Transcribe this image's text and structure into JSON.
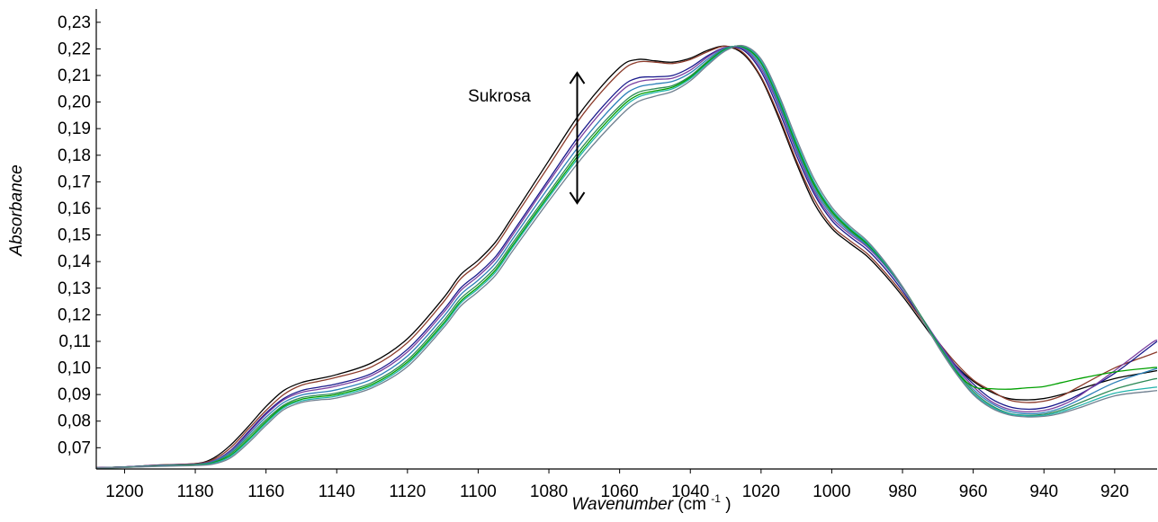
{
  "chart_data": {
    "type": "line",
    "xlabel_italic": "Wavenumber",
    "xlabel_unit_prefix": "(cm",
    "xlabel_unit_sup": "-1",
    "xlabel_unit_suffix": ")",
    "ylabel": "Absorbance",
    "xlim": [
      1208,
      908
    ],
    "ylim": [
      0.062,
      0.235
    ],
    "x_reversed": true,
    "grid": false,
    "x_ticks": [
      1200,
      1180,
      1160,
      1140,
      1120,
      1100,
      1080,
      1060,
      1040,
      1020,
      1000,
      980,
      960,
      940,
      920
    ],
    "x_tick_labels": [
      "1200",
      "1180",
      "1160",
      "1140",
      "1120",
      "1100",
      "1080",
      "1060",
      "1040",
      "1020",
      "1000",
      "980",
      "960",
      "940",
      "920"
    ],
    "y_ticks": [
      0.07,
      0.08,
      0.09,
      0.1,
      0.11,
      0.12,
      0.13,
      0.14,
      0.15,
      0.16,
      0.17,
      0.18,
      0.19,
      0.2,
      0.21,
      0.22,
      0.23
    ],
    "y_tick_labels": [
      "0,07",
      "0,08",
      "0,09",
      "0,10",
      "0,11",
      "0,12",
      "0,13",
      "0,14",
      "0,15",
      "0,16",
      "0,17",
      "0,18",
      "0,19",
      "0,20",
      "0,21",
      "0,22",
      "0,23"
    ],
    "annotation": {
      "text": "Sukrosa",
      "arrow_x": 1072,
      "arrow_y": [
        0.162,
        0.211
      ],
      "text_x": 1094,
      "text_y": 0.2025
    },
    "spectrum_x": [
      1208,
      1200,
      1190,
      1180,
      1175,
      1170,
      1165,
      1160,
      1155,
      1150,
      1145,
      1140,
      1130,
      1120,
      1110,
      1105,
      1100,
      1095,
      1090,
      1080,
      1070,
      1060,
      1055,
      1050,
      1045,
      1040,
      1035,
      1030,
      1025,
      1020,
      1015,
      1010,
      1005,
      1000,
      995,
      990,
      985,
      980,
      975,
      970,
      965,
      960,
      955,
      950,
      945,
      940,
      935,
      930,
      920,
      910,
      908
    ],
    "series": [
      {
        "color": "#000000",
        "values": [
          0.0625,
          0.0628,
          0.0635,
          0.064,
          0.066,
          0.071,
          0.078,
          0.0855,
          0.0915,
          0.0945,
          0.096,
          0.0975,
          0.102,
          0.111,
          0.126,
          0.135,
          0.1405,
          0.1475,
          0.1575,
          0.178,
          0.198,
          0.213,
          0.216,
          0.2155,
          0.215,
          0.2165,
          0.2195,
          0.221,
          0.218,
          0.209,
          0.194,
          0.177,
          0.162,
          0.1525,
          0.147,
          0.142,
          0.135,
          0.127,
          0.118,
          0.109,
          0.101,
          0.095,
          0.091,
          0.0885,
          0.088,
          0.0885,
          0.09,
          0.092,
          0.096,
          0.0985,
          0.099
        ]
      },
      {
        "color": "#8b3a2a",
        "values": [
          0.0625,
          0.0628,
          0.0635,
          0.064,
          0.0655,
          0.07,
          0.077,
          0.084,
          0.09,
          0.0935,
          0.095,
          0.0965,
          0.1005,
          0.1095,
          0.1245,
          0.1335,
          0.139,
          0.146,
          0.156,
          0.176,
          0.196,
          0.211,
          0.215,
          0.215,
          0.2145,
          0.216,
          0.219,
          0.221,
          0.2185,
          0.2095,
          0.195,
          0.178,
          0.1635,
          0.1535,
          0.148,
          0.143,
          0.136,
          0.128,
          0.119,
          0.11,
          0.102,
          0.0955,
          0.0915,
          0.088,
          0.087,
          0.0875,
          0.0895,
          0.093,
          0.1,
          0.105,
          0.106
        ]
      },
      {
        "color": "#1a1a8c",
        "values": [
          0.0625,
          0.0628,
          0.0634,
          0.0638,
          0.065,
          0.069,
          0.076,
          0.083,
          0.0885,
          0.0915,
          0.0928,
          0.094,
          0.098,
          0.107,
          0.1215,
          0.13,
          0.1355,
          0.142,
          0.1515,
          0.171,
          0.19,
          0.205,
          0.209,
          0.2095,
          0.21,
          0.213,
          0.2175,
          0.2205,
          0.2195,
          0.2115,
          0.197,
          0.18,
          0.1655,
          0.1555,
          0.1495,
          0.1445,
          0.1375,
          0.129,
          0.1195,
          0.11,
          0.101,
          0.094,
          0.0885,
          0.0855,
          0.0845,
          0.085,
          0.087,
          0.09,
          0.098,
          0.108,
          0.11
        ]
      },
      {
        "color": "#7a3fa0",
        "values": [
          0.0625,
          0.0628,
          0.0634,
          0.0638,
          0.065,
          0.0688,
          0.0755,
          0.0825,
          0.088,
          0.0908,
          0.092,
          0.0932,
          0.0972,
          0.106,
          0.1205,
          0.129,
          0.1345,
          0.141,
          0.1505,
          0.17,
          0.1885,
          0.2035,
          0.2075,
          0.2085,
          0.209,
          0.212,
          0.217,
          0.2205,
          0.22,
          0.2125,
          0.1985,
          0.1815,
          0.1665,
          0.1565,
          0.1505,
          0.1455,
          0.1385,
          0.13,
          0.12,
          0.11,
          0.1005,
          0.093,
          0.0875,
          0.0845,
          0.0835,
          0.084,
          0.086,
          0.0895,
          0.099,
          0.109,
          0.1105
        ]
      },
      {
        "color": "#2b7fb8",
        "values": [
          0.0624,
          0.0627,
          0.0633,
          0.0637,
          0.0648,
          0.0684,
          0.0748,
          0.0815,
          0.087,
          0.0898,
          0.0908,
          0.0918,
          0.0958,
          0.1045,
          0.119,
          0.1275,
          0.133,
          0.1395,
          0.149,
          0.168,
          0.186,
          0.201,
          0.2055,
          0.2068,
          0.2078,
          0.211,
          0.2162,
          0.2203,
          0.2203,
          0.2135,
          0.1995,
          0.1825,
          0.1675,
          0.1575,
          0.1512,
          0.146,
          0.1388,
          0.1302,
          0.12,
          0.1095,
          0.0998,
          0.092,
          0.0868,
          0.0838,
          0.0828,
          0.0832,
          0.085,
          0.088,
          0.0945,
          0.099,
          0.0998
        ]
      },
      {
        "color": "#2e8b57",
        "values": [
          0.0624,
          0.0627,
          0.0632,
          0.0636,
          0.0645,
          0.0678,
          0.074,
          0.0805,
          0.086,
          0.0888,
          0.0898,
          0.0906,
          0.0945,
          0.103,
          0.1175,
          0.126,
          0.1315,
          0.138,
          0.1475,
          0.166,
          0.184,
          0.1985,
          0.2035,
          0.205,
          0.2062,
          0.2098,
          0.2155,
          0.22,
          0.2206,
          0.2145,
          0.2005,
          0.1835,
          0.1685,
          0.1583,
          0.1518,
          0.1465,
          0.1392,
          0.1305,
          0.12,
          0.1092,
          0.0992,
          0.0912,
          0.086,
          0.083,
          0.0822,
          0.0826,
          0.0842,
          0.0868,
          0.092,
          0.0955,
          0.096
        ]
      },
      {
        "color": "#00a000",
        "values": [
          0.0624,
          0.0626,
          0.0631,
          0.0635,
          0.0643,
          0.0672,
          0.0732,
          0.0798,
          0.0855,
          0.0882,
          0.0892,
          0.09,
          0.0938,
          0.1022,
          0.1165,
          0.125,
          0.1305,
          0.137,
          0.1465,
          0.165,
          0.1828,
          0.1975,
          0.2025,
          0.2042,
          0.2056,
          0.2093,
          0.215,
          0.2198,
          0.2208,
          0.215,
          0.2012,
          0.1842,
          0.1692,
          0.159,
          0.1523,
          0.1468,
          0.1394,
          0.1305,
          0.1198,
          0.1088,
          0.0988,
          0.093,
          0.0922,
          0.092,
          0.0925,
          0.093,
          0.0945,
          0.096,
          0.0985,
          0.1,
          0.1002
        ]
      },
      {
        "color": "#20b2aa",
        "values": [
          0.0624,
          0.0626,
          0.0631,
          0.0634,
          0.0641,
          0.0668,
          0.0726,
          0.0792,
          0.085,
          0.0876,
          0.0886,
          0.0894,
          0.0932,
          0.1015,
          0.1158,
          0.1243,
          0.1298,
          0.1362,
          0.1458,
          0.1642,
          0.1818,
          0.1965,
          0.2017,
          0.2036,
          0.205,
          0.2088,
          0.2146,
          0.2196,
          0.221,
          0.2155,
          0.2018,
          0.185,
          0.17,
          0.1596,
          0.1528,
          0.1472,
          0.1396,
          0.1305,
          0.1196,
          0.1085,
          0.0985,
          0.0905,
          0.0855,
          0.0828,
          0.082,
          0.0822,
          0.0836,
          0.0858,
          0.0905,
          0.0925,
          0.0928
        ]
      },
      {
        "color": "#708090",
        "values": [
          0.0624,
          0.0626,
          0.063,
          0.0633,
          0.0638,
          0.0662,
          0.0718,
          0.0784,
          0.0843,
          0.087,
          0.088,
          0.0887,
          0.0925,
          0.1005,
          0.1148,
          0.1232,
          0.1287,
          0.135,
          0.1445,
          0.1628,
          0.18,
          0.1945,
          0.2,
          0.2022,
          0.204,
          0.208,
          0.214,
          0.2193,
          0.2212,
          0.2162,
          0.2028,
          0.1862,
          0.1712,
          0.1605,
          0.1535,
          0.1478,
          0.14,
          0.1306,
          0.1195,
          0.1082,
          0.0982,
          0.09,
          0.085,
          0.0824,
          0.0816,
          0.0818,
          0.083,
          0.085,
          0.0895,
          0.0912,
          0.0915
        ]
      }
    ]
  }
}
